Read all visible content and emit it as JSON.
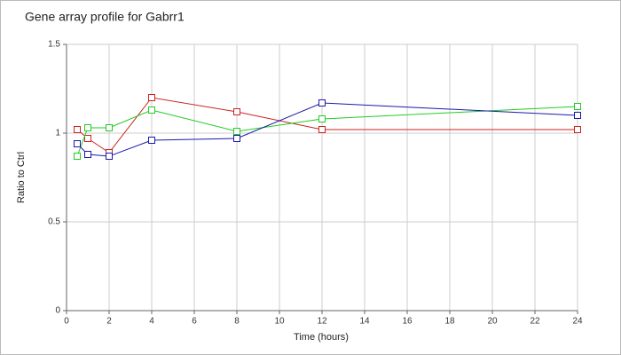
{
  "chart_data": {
    "type": "line",
    "title": "Gene array profile for Gabrr1",
    "x_label": "Time (hours)",
    "y_label": "Ratio to Ctrl",
    "x": [
      0.5,
      1,
      2,
      4,
      8,
      12,
      24
    ],
    "series": [
      {
        "color": "#cc2222",
        "values": [
          1.02,
          0.97,
          0.89,
          1.2,
          1.12,
          1.02,
          1.02
        ]
      },
      {
        "color": "#22cc22",
        "values": [
          0.87,
          1.03,
          1.03,
          1.13,
          1.01,
          1.08,
          1.15
        ]
      },
      {
        "color": "#1a1aaa",
        "values": [
          0.94,
          0.88,
          0.87,
          0.96,
          0.97,
          1.17,
          1.1
        ]
      }
    ],
    "xlim": [
      0,
      24
    ],
    "xticks": [
      0,
      2,
      4,
      6,
      8,
      10,
      12,
      14,
      16,
      18,
      20,
      22,
      24
    ],
    "ylim": [
      0,
      1.5
    ],
    "yticks": [
      0,
      0.5,
      1,
      1.5
    ],
    "grid": true
  }
}
